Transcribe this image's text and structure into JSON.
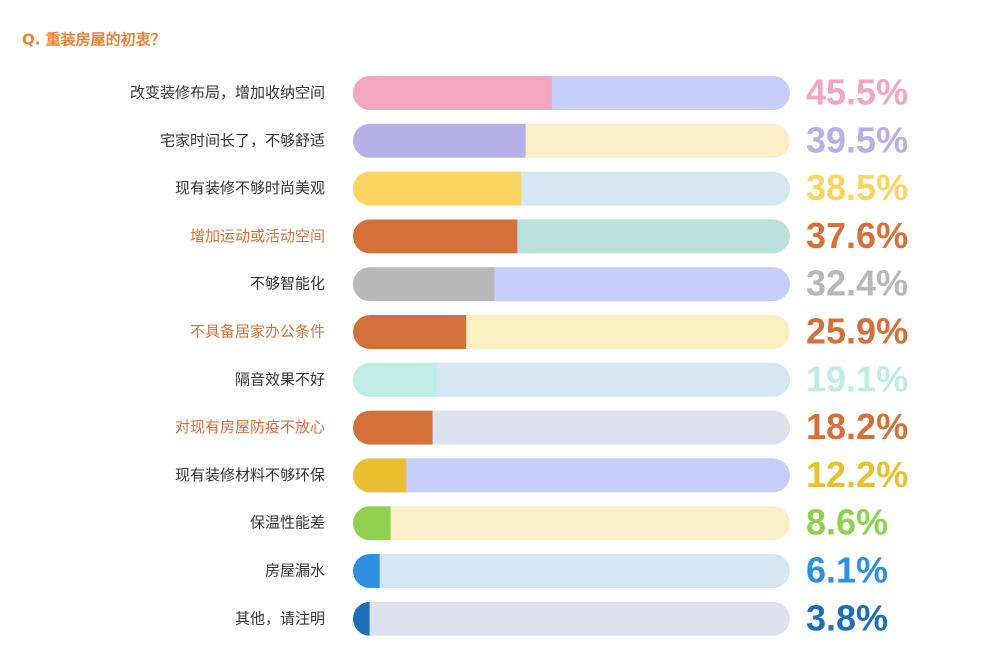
{
  "chart_data": {
    "type": "hbar",
    "title": "Q. 重装房屋的初衷？",
    "categories": [
      "改变装修布局，增加收纳空间",
      "宅家时间长了，不够舒适",
      "现有装修不够时尚美观",
      "增加运动或活动空间",
      "不够智能化",
      "不具备居家办公条件",
      "隔音效果不好",
      "对现有房屋防疫不放心",
      "现有装修材料不够环保",
      "保温性能差",
      "房屋漏水",
      "其他，请注明"
    ],
    "values": [
      45.5,
      39.5,
      38.5,
      37.6,
      32.4,
      25.9,
      19.1,
      18.2,
      12.2,
      8.6,
      6.1,
      3.8
    ],
    "value_labels": [
      "45.5%",
      "39.5%",
      "38.5%",
      "37.6%",
      "32.4%",
      "25.9%",
      "19.1%",
      "18.2%",
      "12.2%",
      "8.6%",
      "6.1%",
      "3.8%"
    ],
    "colors": [
      "#f2a7c0",
      "#b5b0e6",
      "#fcd460",
      "#d4713a",
      "#b8b8b8",
      "#d4713a",
      "#bfece4",
      "#d4713a",
      "#e8c030",
      "#8fd14f",
      "#2f8fe0",
      "#1e6fb8"
    ],
    "track_colors": [
      "#c5cff7",
      "#fbefc9",
      "#d5e6f5",
      "#b9e0dc",
      "#c5cff7",
      "#fbefc0",
      "#d5e6f5",
      "#dde3ee",
      "#c5cff7",
      "#fbefc9",
      "#d5e6f5",
      "#dde3ee"
    ],
    "label_colors": [
      "#333333",
      "#333333",
      "#333333",
      "#d4713a",
      "#333333",
      "#d4713a",
      "#333333",
      "#d4713a",
      "#333333",
      "#333333",
      "#333333",
      "#333333"
    ],
    "title_color": "#e8823a",
    "xlim": [
      0,
      100
    ]
  }
}
